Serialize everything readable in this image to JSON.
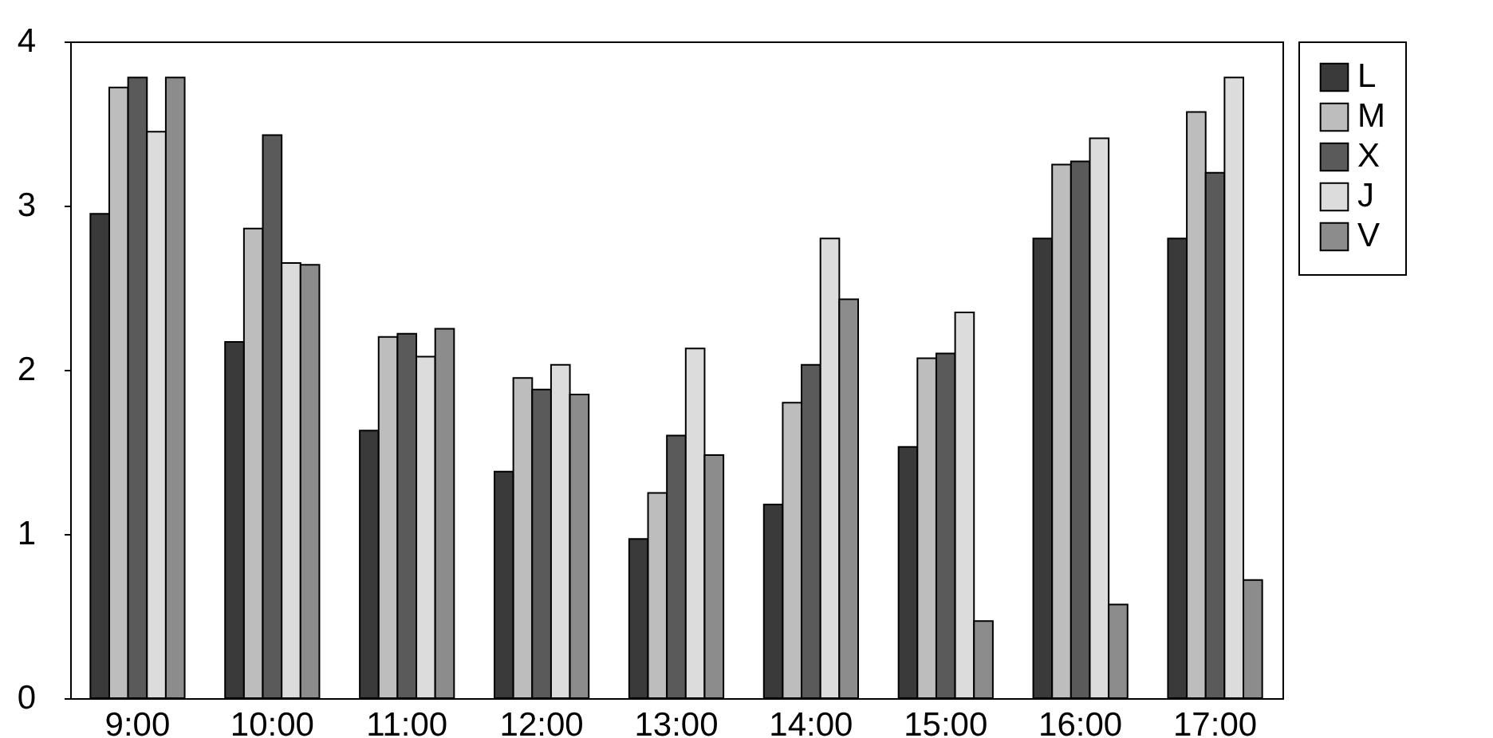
{
  "chart_data": {
    "type": "bar",
    "categories": [
      "9:00",
      "10:00",
      "11:00",
      "12:00",
      "13:00",
      "14:00",
      "15:00",
      "16:00",
      "17:00"
    ],
    "series": [
      {
        "name": "L",
        "color": "#3a3a3a",
        "values": [
          2.95,
          2.17,
          1.63,
          1.38,
          0.97,
          1.18,
          1.53,
          2.8,
          2.8
        ]
      },
      {
        "name": "M",
        "color": "#bdbdbd",
        "values": [
          3.72,
          2.86,
          2.2,
          1.95,
          1.25,
          1.8,
          2.07,
          3.25,
          3.57
        ]
      },
      {
        "name": "X",
        "color": "#5a5a5a",
        "values": [
          3.78,
          3.43,
          2.22,
          1.88,
          1.6,
          2.03,
          2.1,
          3.27,
          3.2
        ]
      },
      {
        "name": "J",
        "color": "#dcdcdc",
        "values": [
          3.45,
          2.65,
          2.08,
          2.03,
          2.13,
          2.8,
          2.35,
          3.41,
          3.78
        ]
      },
      {
        "name": "V",
        "color": "#8c8c8c",
        "values": [
          3.78,
          2.64,
          2.25,
          1.85,
          1.48,
          2.43,
          0.47,
          0.57,
          0.72
        ]
      }
    ],
    "ylim": [
      0,
      4
    ],
    "yticks": [
      0,
      1,
      2,
      3,
      4
    ],
    "grid": false,
    "legend": "top right"
  }
}
